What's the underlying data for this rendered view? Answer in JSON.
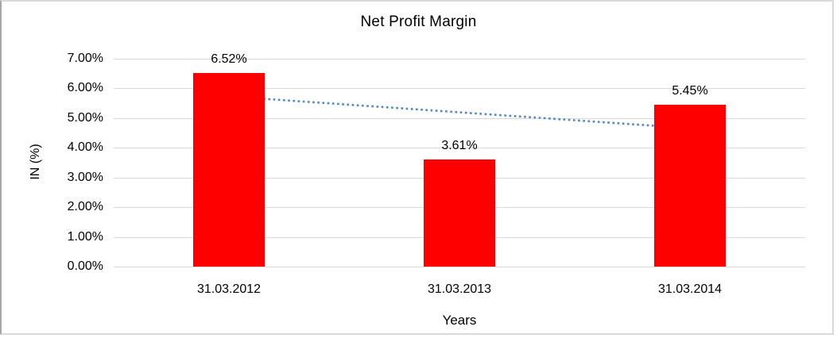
{
  "chart_data": {
    "type": "bar",
    "title": "Net Profit Margin",
    "categories": [
      "31.03.2012",
      "31.03.2013",
      "31.03.2014"
    ],
    "values": [
      6.52,
      3.61,
      5.45
    ],
    "data_labels": [
      "6.52%",
      "3.61%",
      "5.45%"
    ],
    "xlabel": "Years",
    "ylabel": "IN (%)",
    "ylim": [
      0,
      7
    ],
    "ytick_step": 1,
    "ytick_labels": [
      "0.00%",
      "1.00%",
      "2.00%",
      "3.00%",
      "4.00%",
      "5.00%",
      "6.00%",
      "7.00%"
    ],
    "grid": true,
    "grid_color": "#d9d9d9",
    "legend": "none",
    "bar_color": "#ff0000",
    "trendline": {
      "style": "dotted",
      "color": "#4f87c5",
      "start_value": 5.73,
      "end_value": 4.66
    }
  }
}
